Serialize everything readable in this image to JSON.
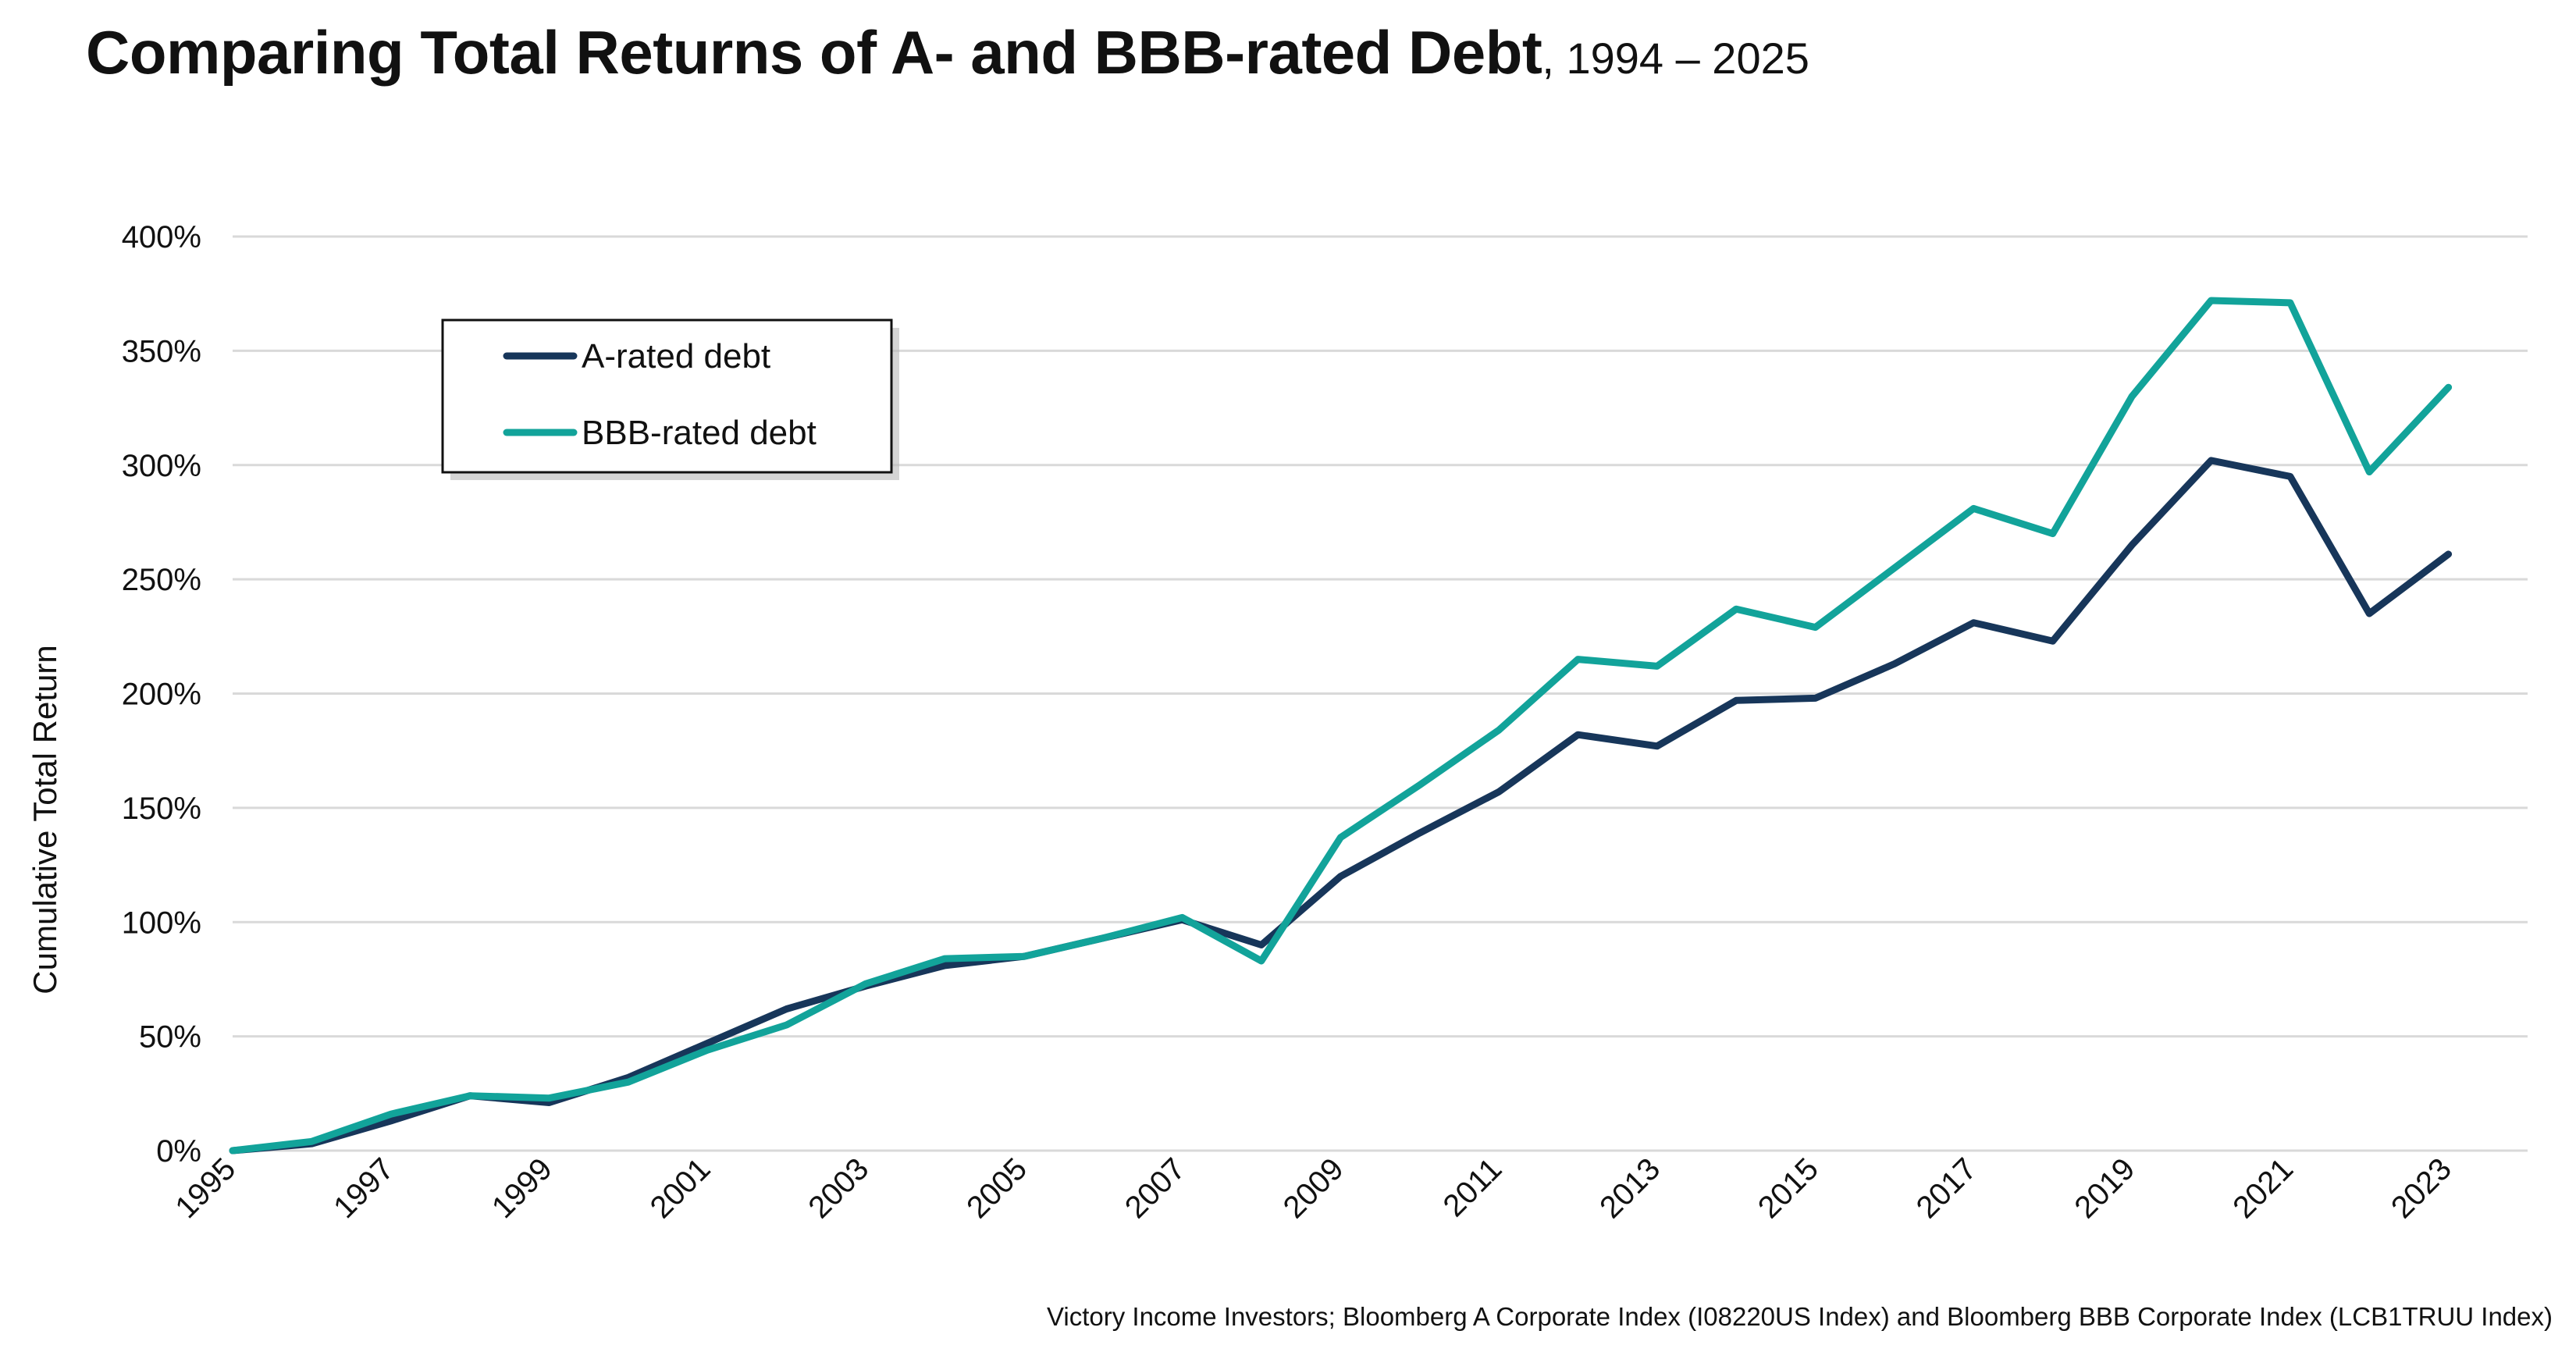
{
  "title": {
    "main": "Comparing Total Returns of A- and BBB-rated Debt",
    "sub": ", 1994 – 2025"
  },
  "source": "Victory Income Investors; Bloomberg A Corporate Index (I08220US Index) and Bloomberg BBB Corporate Index (LCB1TRUU Index)",
  "colors": {
    "a_rated": "#17365a",
    "bbb_rated": "#12a39a",
    "grid": "#d9d9d9"
  },
  "chart_data": {
    "type": "line",
    "title": "Comparing Total Returns of A- and BBB-rated Debt",
    "ylabel": "Cumulative Total Return",
    "xlabel": "",
    "ylim": [
      0,
      400
    ],
    "y_ticks": [
      "0%",
      "50%",
      "100%",
      "150%",
      "200%",
      "250%",
      "300%",
      "350%",
      "400%"
    ],
    "x_tick_labels": [
      "1995",
      "1997",
      "1999",
      "2001",
      "2003",
      "2005",
      "2007",
      "2009",
      "2011",
      "2013",
      "2015",
      "2017",
      "2019",
      "2021",
      "2023"
    ],
    "grid": true,
    "legend_position": "top-left",
    "x": [
      1995,
      1996,
      1997,
      1998,
      1999,
      2000,
      2001,
      2002,
      2003,
      2004,
      2005,
      2006,
      2007,
      2008,
      2009,
      2010,
      2011,
      2012,
      2013,
      2014,
      2015,
      2016,
      2017,
      2018,
      2019,
      2020,
      2021,
      2022,
      2023
    ],
    "series": [
      {
        "name": "A-rated debt",
        "color": "#17365a",
        "values": [
          0,
          3,
          13,
          24,
          21,
          32,
          47,
          62,
          72,
          81,
          85,
          93,
          101,
          90,
          120,
          139,
          157,
          182,
          177,
          197,
          198,
          213,
          231,
          223,
          265,
          302,
          295,
          235,
          261
        ]
      },
      {
        "name": "BBB-rated debt",
        "color": "#12a39a",
        "values": [
          0,
          4,
          16,
          24,
          23,
          30,
          44,
          55,
          73,
          84,
          85,
          93,
          102,
          83,
          137,
          160,
          184,
          215,
          212,
          237,
          229,
          255,
          281,
          270,
          330,
          372,
          371,
          297,
          334
        ]
      }
    ]
  }
}
